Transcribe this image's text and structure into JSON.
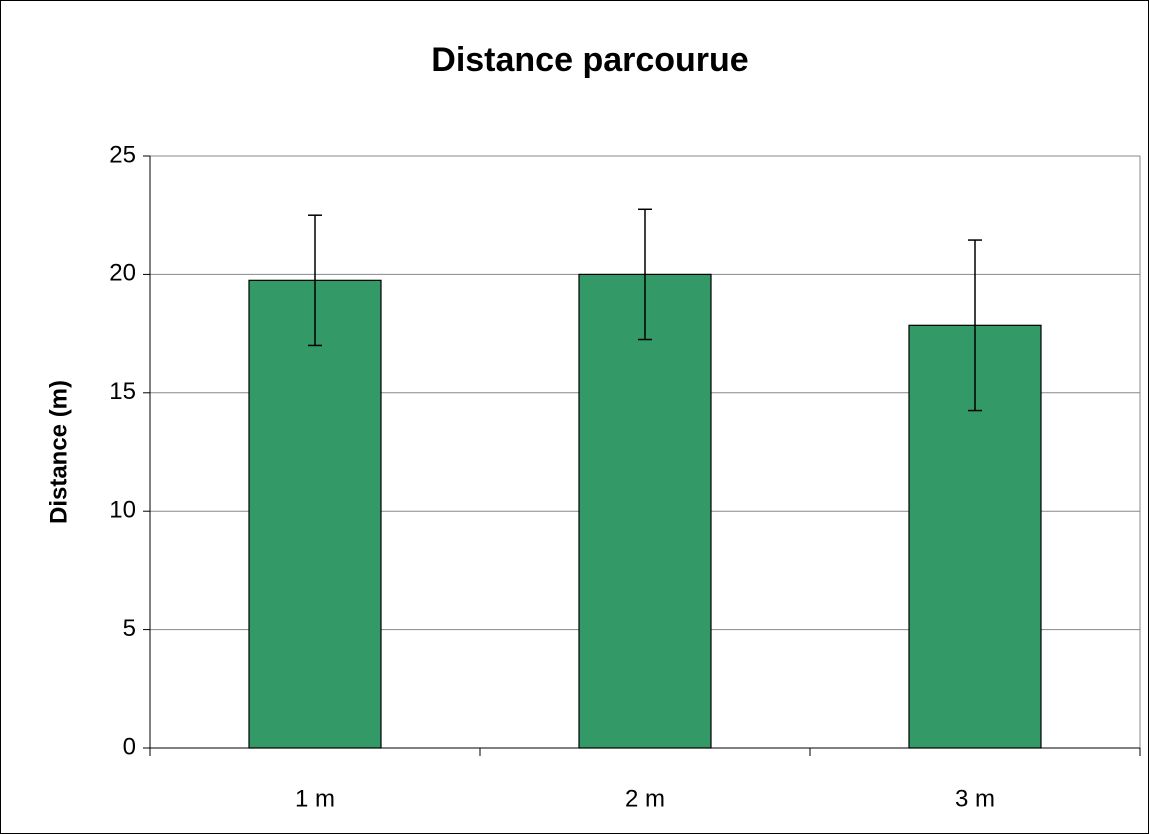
{
  "chart_data": {
    "type": "bar",
    "title": "Distance parcourue",
    "y_label": "Distance (m)",
    "categories": [
      "1 m",
      "2 m",
      "3 m"
    ],
    "values": [
      19.75,
      20.0,
      17.85
    ],
    "errors": [
      2.75,
      2.75,
      3.6
    ],
    "color": "#339966",
    "ylim": [
      0,
      25
    ],
    "yticks": [
      0,
      5,
      10,
      15,
      20,
      25
    ],
    "grid": true
  }
}
